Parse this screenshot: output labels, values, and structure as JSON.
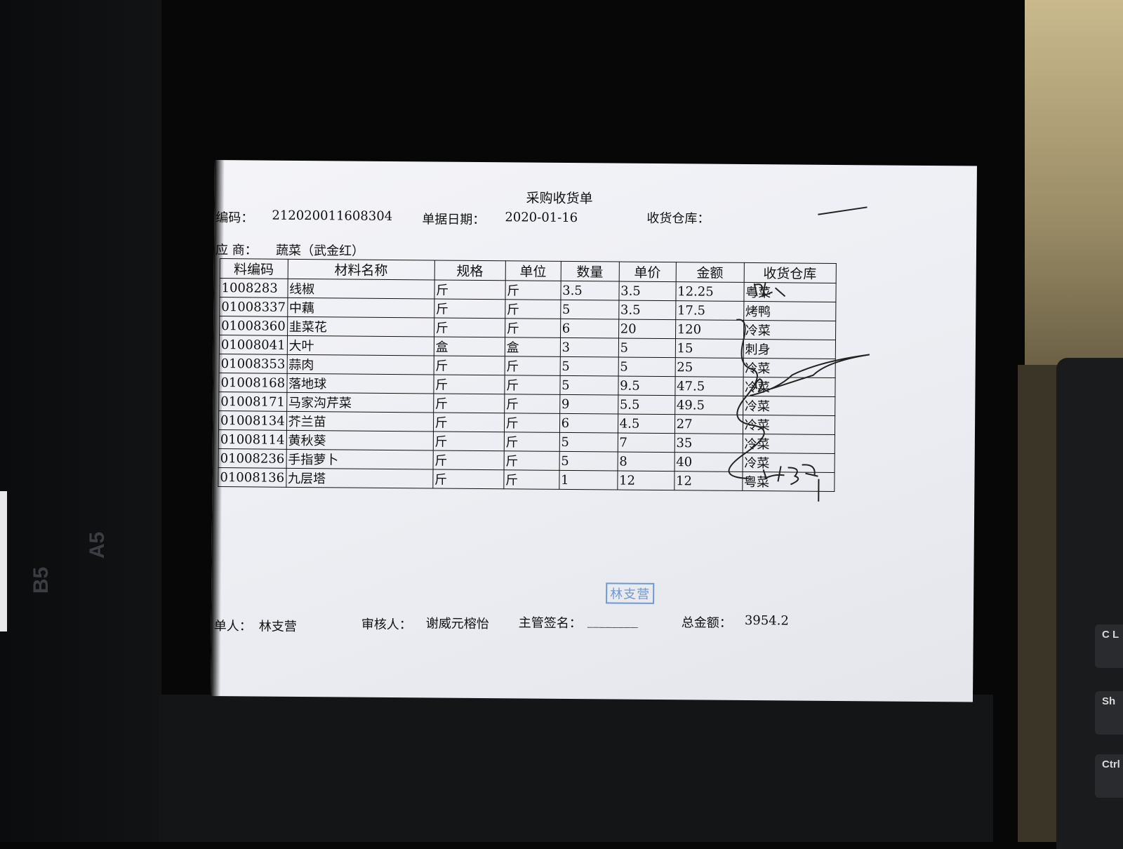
{
  "document": {
    "title": "采购收货单",
    "code_label": "编码：",
    "code_value": "212020011608304",
    "date_label": "单据日期：",
    "date_value": "2020-01-16",
    "warehouse_label": "收货仓库：",
    "supplier_label": "应 商：",
    "supplier_value": "蔬菜（武金红）",
    "table": {
      "headers": [
        "料编码",
        "材料名称",
        "规格",
        "单位",
        "数量",
        "单价",
        "金额",
        "收货仓库"
      ],
      "rows": [
        [
          "1008283",
          "线椒",
          "斤",
          "斤",
          "3.5",
          "3.5",
          "12.25",
          "粤菜"
        ],
        [
          "01008337",
          "中藕",
          "斤",
          "斤",
          "5",
          "3.5",
          "17.5",
          "烤鸭"
        ],
        [
          "01008360",
          "韭菜花",
          "斤",
          "斤",
          "6",
          "20",
          "120",
          "冷菜"
        ],
        [
          "01008041",
          "大叶",
          "盒",
          "盒",
          "3",
          "5",
          "15",
          "刺身"
        ],
        [
          "01008353",
          "蒜肉",
          "斤",
          "斤",
          "5",
          "5",
          "25",
          "冷菜"
        ],
        [
          "01008168",
          "落地球",
          "斤",
          "斤",
          "5",
          "9.5",
          "47.5",
          "冷菜"
        ],
        [
          "01008171",
          "马家沟芹菜",
          "斤",
          "斤",
          "9",
          "5.5",
          "49.5",
          "冷菜"
        ],
        [
          "01008134",
          "芥兰苗",
          "斤",
          "斤",
          "6",
          "4.5",
          "27",
          "冷菜"
        ],
        [
          "01008114",
          "黄秋葵",
          "斤",
          "斤",
          "5",
          "7",
          "35",
          "冷菜"
        ],
        [
          "01008236",
          "手指萝卜",
          "斤",
          "斤",
          "5",
          "8",
          "40",
          "冷菜"
        ],
        [
          "01008136",
          "九层塔",
          "斤",
          "斤",
          "1",
          "12",
          "12",
          "粤菜"
        ]
      ]
    },
    "stamp_text": "林支营",
    "maker_label": "单人：",
    "maker_value": "林支营",
    "reviewer_label": "审核人：",
    "reviewer_value": "谢威元榕怡",
    "supervisor_label": "主管签名：",
    "supervisor_value": "________",
    "total_label": "总金额：",
    "total_value": "3954.2"
  },
  "background": {
    "stickers": [
      "B5",
      "A5"
    ],
    "keys": [
      "C L",
      "Sh",
      "Ctrl"
    ]
  }
}
